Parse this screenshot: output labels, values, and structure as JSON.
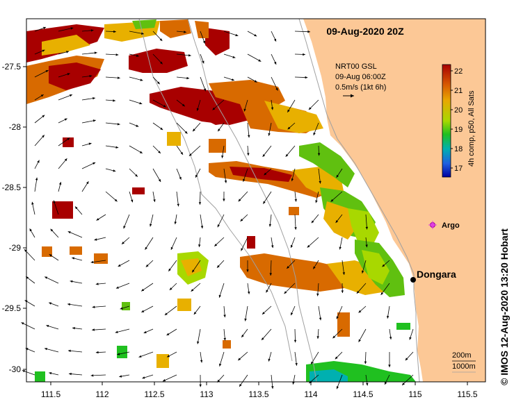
{
  "map": {
    "title": "09-Aug-2020 20Z",
    "product": {
      "line1": "NRT00 GSL",
      "line2": "09-Aug 06:00Z",
      "line3": "0.5m/s (1kt 6h)"
    },
    "colorbar": {
      "label": "4h comp, p50, All Sats",
      "ticks": [
        "22",
        "21",
        "20",
        "19",
        "18",
        "17"
      ],
      "stops": [
        "#a80000",
        "#d85a00",
        "#e8a800",
        "#a8d800",
        "#20c020",
        "#00b0b0",
        "#2060e0",
        "#0000a0"
      ]
    },
    "places": {
      "argo": "Argo",
      "dongara": "Dongara"
    },
    "contours": {
      "c1": "200m",
      "c2": "1000m"
    },
    "credit": "© IMOS 12-Aug-2020 13:20 Hobart",
    "axes": {
      "x_ticks": [
        "111.5",
        "112",
        "112.5",
        "113",
        "113.5",
        "114",
        "114.5",
        "115",
        "115.5"
      ],
      "y_ticks": [
        "-27.5",
        "-28",
        "-28.5",
        "-29",
        "-29.5",
        "-30"
      ]
    },
    "colors": {
      "land": "#fcc896",
      "sea": "#ffffff",
      "sst_hot": "#a80000",
      "sst_warm": "#d86a00",
      "sst_mid": "#e8b000",
      "sst_green": "#60c010",
      "argo": "#e040e0"
    }
  }
}
